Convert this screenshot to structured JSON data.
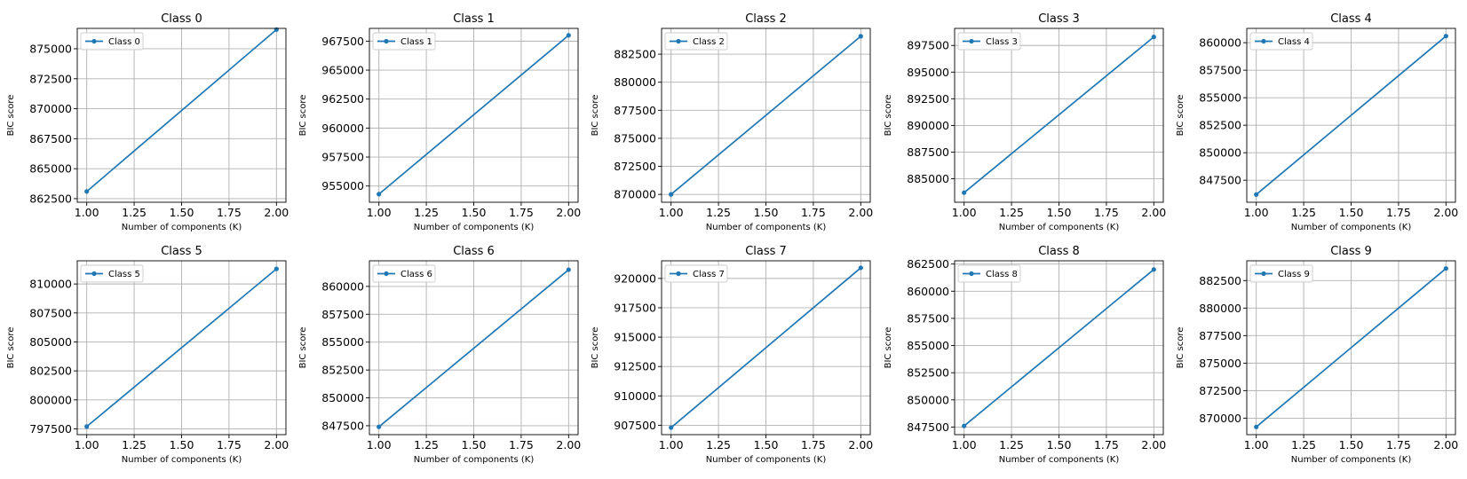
{
  "colors": {
    "line": "#1f77b4",
    "grid": "#b0b0b0",
    "axes": "#000000",
    "background": "#ffffff"
  },
  "chart_data": [
    {
      "type": "line",
      "title": "Class 0",
      "xlabel": "Number of components (K)",
      "ylabel": "BIC score",
      "xlim": [
        0.95,
        2.05
      ],
      "ylim": [
        862200,
        876700
      ],
      "xticks": [
        1.0,
        1.25,
        1.5,
        1.75,
        2.0
      ],
      "xtick_labels": [
        "1.00",
        "1.25",
        "1.50",
        "1.75",
        "2.00"
      ],
      "yticks": [
        862500,
        865000,
        867500,
        870000,
        872500,
        875000
      ],
      "ytick_labels": [
        "862500",
        "865000",
        "867500",
        "870000",
        "872500",
        "875000"
      ],
      "grid": true,
      "legend": "top-left",
      "series": [
        {
          "name": "Class 0",
          "x": [
            1,
            2
          ],
          "y": [
            863100,
            876600
          ]
        }
      ]
    },
    {
      "type": "line",
      "title": "Class 1",
      "xlabel": "Number of components (K)",
      "ylabel": "BIC score",
      "xlim": [
        0.95,
        2.05
      ],
      "ylim": [
        953600,
        968600
      ],
      "xticks": [
        1.0,
        1.25,
        1.5,
        1.75,
        2.0
      ],
      "xtick_labels": [
        "1.00",
        "1.25",
        "1.50",
        "1.75",
        "2.00"
      ],
      "yticks": [
        955000,
        957500,
        960000,
        962500,
        965000,
        967500
      ],
      "ytick_labels": [
        "955000",
        "957500",
        "960000",
        "962500",
        "965000",
        "967500"
      ],
      "grid": true,
      "legend": "top-left",
      "series": [
        {
          "name": "Class 1",
          "x": [
            1,
            2
          ],
          "y": [
            954300,
            968000
          ]
        }
      ]
    },
    {
      "type": "line",
      "title": "Class 2",
      "xlabel": "Number of components (K)",
      "ylabel": "BIC score",
      "xlim": [
        0.95,
        2.05
      ],
      "ylim": [
        869300,
        884800
      ],
      "xticks": [
        1.0,
        1.25,
        1.5,
        1.75,
        2.0
      ],
      "xtick_labels": [
        "1.00",
        "1.25",
        "1.50",
        "1.75",
        "2.00"
      ],
      "yticks": [
        870000,
        872500,
        875000,
        877500,
        880000,
        882500
      ],
      "ytick_labels": [
        "870000",
        "872500",
        "875000",
        "877500",
        "880000",
        "882500"
      ],
      "grid": true,
      "legend": "top-left",
      "series": [
        {
          "name": "Class 2",
          "x": [
            1,
            2
          ],
          "y": [
            870000,
            884100
          ]
        }
      ]
    },
    {
      "type": "line",
      "title": "Class 3",
      "xlabel": "Number of components (K)",
      "ylabel": "BIC score",
      "xlim": [
        0.95,
        2.05
      ],
      "ylim": [
        882800,
        899100
      ],
      "xticks": [
        1.0,
        1.25,
        1.5,
        1.75,
        2.0
      ],
      "xtick_labels": [
        "1.00",
        "1.25",
        "1.50",
        "1.75",
        "2.00"
      ],
      "yticks": [
        885000,
        887500,
        890000,
        892500,
        895000,
        897500
      ],
      "ytick_labels": [
        "885000",
        "887500",
        "890000",
        "892500",
        "895000",
        "897500"
      ],
      "grid": true,
      "legend": "top-left",
      "series": [
        {
          "name": "Class 3",
          "x": [
            1,
            2
          ],
          "y": [
            883700,
            898300
          ]
        }
      ]
    },
    {
      "type": "line",
      "title": "Class 4",
      "xlabel": "Number of components (K)",
      "ylabel": "BIC score",
      "xlim": [
        0.95,
        2.05
      ],
      "ylim": [
        845500,
        861300
      ],
      "xticks": [
        1.0,
        1.25,
        1.5,
        1.75,
        2.0
      ],
      "xtick_labels": [
        "1.00",
        "1.25",
        "1.50",
        "1.75",
        "2.00"
      ],
      "yticks": [
        847500,
        850000,
        852500,
        855000,
        857500,
        860000
      ],
      "ytick_labels": [
        "847500",
        "850000",
        "852500",
        "855000",
        "857500",
        "860000"
      ],
      "grid": true,
      "legend": "top-left",
      "series": [
        {
          "name": "Class 4",
          "x": [
            1,
            2
          ],
          "y": [
            846200,
            860600
          ]
        }
      ]
    },
    {
      "type": "line",
      "title": "Class 5",
      "xlabel": "Number of components (K)",
      "ylabel": "BIC score",
      "xlim": [
        0.95,
        2.05
      ],
      "ylim": [
        797000,
        812000
      ],
      "xticks": [
        1.0,
        1.25,
        1.5,
        1.75,
        2.0
      ],
      "xtick_labels": [
        "1.00",
        "1.25",
        "1.50",
        "1.75",
        "2.00"
      ],
      "yticks": [
        797500,
        800000,
        802500,
        805000,
        807500,
        810000
      ],
      "ytick_labels": [
        "797500",
        "800000",
        "802500",
        "805000",
        "807500",
        "810000"
      ],
      "grid": true,
      "legend": "top-left",
      "series": [
        {
          "name": "Class 5",
          "x": [
            1,
            2
          ],
          "y": [
            797700,
            811300
          ]
        }
      ]
    },
    {
      "type": "line",
      "title": "Class 6",
      "xlabel": "Number of components (K)",
      "ylabel": "BIC score",
      "xlim": [
        0.95,
        2.05
      ],
      "ylim": [
        846700,
        862300
      ],
      "xticks": [
        1.0,
        1.25,
        1.5,
        1.75,
        2.0
      ],
      "xtick_labels": [
        "1.00",
        "1.25",
        "1.50",
        "1.75",
        "2.00"
      ],
      "yticks": [
        847500,
        850000,
        852500,
        855000,
        857500,
        860000
      ],
      "ytick_labels": [
        "847500",
        "850000",
        "852500",
        "855000",
        "857500",
        "860000"
      ],
      "grid": true,
      "legend": "top-left",
      "series": [
        {
          "name": "Class 6",
          "x": [
            1,
            2
          ],
          "y": [
            847400,
            861500
          ]
        }
      ]
    },
    {
      "type": "line",
      "title": "Class 7",
      "xlabel": "Number of components (K)",
      "ylabel": "BIC score",
      "xlim": [
        0.95,
        2.05
      ],
      "ylim": [
        906700,
        921500
      ],
      "xticks": [
        1.0,
        1.25,
        1.5,
        1.75,
        2.0
      ],
      "xtick_labels": [
        "1.00",
        "1.25",
        "1.50",
        "1.75",
        "2.00"
      ],
      "yticks": [
        907500,
        910000,
        912500,
        915000,
        917500,
        920000
      ],
      "ytick_labels": [
        "907500",
        "910000",
        "912500",
        "915000",
        "917500",
        "920000"
      ],
      "grid": true,
      "legend": "top-left",
      "series": [
        {
          "name": "Class 7",
          "x": [
            1,
            2
          ],
          "y": [
            907300,
            920900
          ]
        }
      ]
    },
    {
      "type": "line",
      "title": "Class 8",
      "xlabel": "Number of components (K)",
      "ylabel": "BIC score",
      "xlim": [
        0.95,
        2.05
      ],
      "ylim": [
        846800,
        862800
      ],
      "xticks": [
        1.0,
        1.25,
        1.5,
        1.75,
        2.0
      ],
      "xtick_labels": [
        "1.00",
        "1.25",
        "1.50",
        "1.75",
        "2.00"
      ],
      "yticks": [
        847500,
        850000,
        852500,
        855000,
        857500,
        860000,
        862500
      ],
      "ytick_labels": [
        "847500",
        "850000",
        "852500",
        "855000",
        "857500",
        "860000",
        "862500"
      ],
      "grid": true,
      "legend": "top-left",
      "series": [
        {
          "name": "Class 8",
          "x": [
            1,
            2
          ],
          "y": [
            847600,
            862000
          ]
        }
      ]
    },
    {
      "type": "line",
      "title": "Class 9",
      "xlabel": "Number of components (K)",
      "ylabel": "BIC score",
      "xlim": [
        0.95,
        2.05
      ],
      "ylim": [
        868500,
        884300
      ],
      "xticks": [
        1.0,
        1.25,
        1.5,
        1.75,
        2.0
      ],
      "xtick_labels": [
        "1.00",
        "1.25",
        "1.50",
        "1.75",
        "2.00"
      ],
      "yticks": [
        870000,
        872500,
        875000,
        877500,
        880000,
        882500
      ],
      "ytick_labels": [
        "870000",
        "872500",
        "875000",
        "877500",
        "880000",
        "882500"
      ],
      "grid": true,
      "legend": "top-left",
      "series": [
        {
          "name": "Class 9",
          "x": [
            1,
            2
          ],
          "y": [
            869200,
            883600
          ]
        }
      ]
    }
  ]
}
